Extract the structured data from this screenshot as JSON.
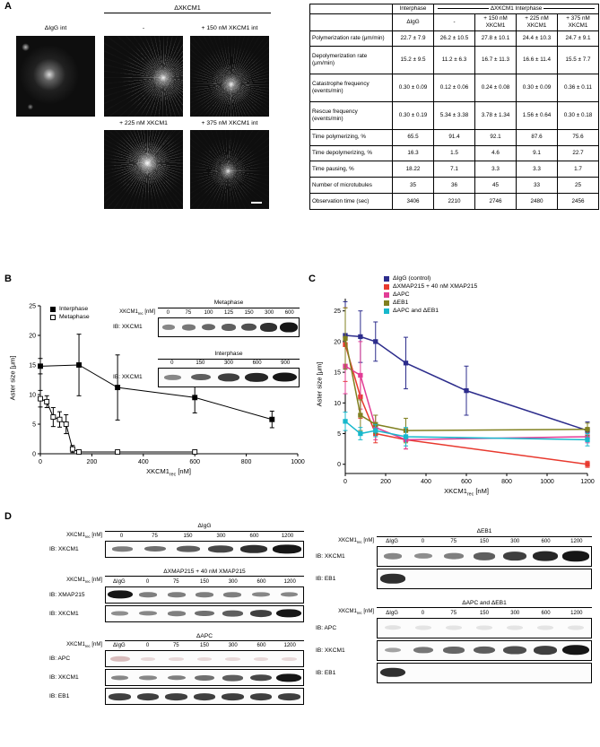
{
  "labels": {
    "xkcm1rec": {
      "base": "XKCM1",
      "sub": "rec",
      "post": " [nM]"
    }
  },
  "panelA": {
    "label": "A",
    "micrographs": {
      "igg_label": "ΔIgG int",
      "group_label": "ΔXKCM1",
      "images": [
        {
          "label": "-"
        },
        {
          "label": "+ 150 nM XKCM1 int"
        },
        {
          "label": "+ 225 nM XKCM1"
        },
        {
          "label": "+ 375 nM XKCM1 int"
        }
      ]
    },
    "table": {
      "col_group1": "Interphase",
      "col_group2": "ΔXKCM1 Interphase",
      "col_headers": [
        "ΔIgG",
        "-",
        "+ 150 nM XKCM1",
        "+ 225 nM XKCM1",
        "+ 375 nM XKCM1"
      ],
      "rows": [
        {
          "label": "Polymerization rate (μm/min)",
          "values": [
            "22.7 ± 7.9",
            "26.2 ± 10.5",
            "27.8 ± 10.1",
            "24.4 ± 10.3",
            "24.7 ± 9.1"
          ]
        },
        {
          "label": "Depolymerization rate (μm/min)",
          "values": [
            "15.2 ± 9.5",
            "11.2 ± 6.3",
            "16.7 ± 11.3",
            "16.6 ± 11.4",
            "15.5 ± 7.7"
          ]
        },
        {
          "label": "Catastrophe frequency (events/min)",
          "values": [
            "0.30 ± 0.09",
            "0.12 ± 0.06",
            "0.24 ± 0.08",
            "0.30 ± 0.09",
            "0.36 ± 0.11"
          ]
        },
        {
          "label": "Rescue frequency (events/min)",
          "values": [
            "0.30 ± 0.19",
            "5.34 ± 3.38",
            "3.78 ± 1.34",
            "1.56 ± 0.64",
            "0.30 ± 0.18"
          ]
        },
        {
          "label": "Time polymerizing, %",
          "values": [
            "65.5",
            "91.4",
            "92.1",
            "87.6",
            "75.6"
          ]
        },
        {
          "label": "Time depolymerizing, %",
          "values": [
            "16.3",
            "1.5",
            "4.6",
            "9.1",
            "22.7"
          ]
        },
        {
          "label": "Time pausing, %",
          "values": [
            "18.22",
            "7.1",
            "3.3",
            "3.3",
            "1.7"
          ]
        },
        {
          "label": "Number of microtubules",
          "values": [
            "35",
            "36",
            "45",
            "33",
            "25"
          ]
        },
        {
          "label": "Observation time (sec)",
          "values": [
            "3406",
            "2210",
            "2746",
            "2480",
            "2456"
          ]
        }
      ]
    }
  },
  "panelB": {
    "label": "B",
    "insets": [
      {
        "title": "Metaphase",
        "has_lane_label": true,
        "extra_lane": null,
        "lanes": [
          "0",
          "75",
          "100",
          "125",
          "150",
          "300",
          "600"
        ],
        "blots": [
          {
            "ib": "IB: XKCM1",
            "bands": [
              0.3,
              0.4,
              0.5,
              0.55,
              0.65,
              0.85,
              1
            ]
          }
        ]
      },
      {
        "title": "Interphase",
        "has_lane_label": false,
        "extra_lane": null,
        "lanes": [
          "0",
          "150",
          "300",
          "600",
          "900"
        ],
        "blots": [
          {
            "ib": "IB: XKCM1",
            "bands": [
              0.3,
              0.55,
              0.75,
              0.9,
              1
            ]
          }
        ]
      }
    ]
  },
  "panelC": {
    "label": "C"
  },
  "panelD": {
    "label": "D",
    "left_groups": [
      {
        "title": "ΔIgG",
        "has_lane_label": true,
        "extra_lane": null,
        "lanes": [
          "0",
          "75",
          "150",
          "300",
          "600",
          "1200"
        ],
        "blots": [
          {
            "ib": "IB: XKCM1",
            "bands": [
              0.35,
              0.45,
              0.55,
              0.7,
              0.85,
              1
            ]
          }
        ]
      },
      {
        "title": "ΔXMAP215 + 40 nM XMAP215",
        "has_lane_label": true,
        "extra_lane": "ΔIgG",
        "lanes": [
          "0",
          "75",
          "150",
          "300",
          "600",
          "1200"
        ],
        "blots": [
          {
            "ib": "IB: XMAP215",
            "bands": [
              1,
              0.35,
              0.35,
              0.35,
              0.35,
              0.3,
              0.3
            ]
          },
          {
            "ib": "IB: XKCM1",
            "bands": [
              0.25,
              0.3,
              0.35,
              0.45,
              0.55,
              0.75,
              1
            ]
          }
        ]
      },
      {
        "title": "ΔAPC",
        "has_lane_label": true,
        "extra_lane": "ΔIgG",
        "lanes": [
          "0",
          "75",
          "150",
          "300",
          "600",
          "1200"
        ],
        "blots": [
          {
            "ib": "IB: APC",
            "bands": [
              0.5,
              0.08,
              0.08,
              0.08,
              0.08,
              0.08,
              0.08
            ],
            "band_color": "#c49a9a"
          },
          {
            "ib": "IB: XKCM1",
            "bands": [
              0.3,
              0.3,
              0.35,
              0.45,
              0.55,
              0.7,
              1
            ]
          },
          {
            "ib": "IB: EB1",
            "bands": [
              0.75,
              0.75,
              0.75,
              0.75,
              0.75,
              0.75,
              0.75
            ]
          }
        ]
      }
    ],
    "right_groups": [
      {
        "title": "ΔEB1",
        "has_lane_label": true,
        "extra_lane": "ΔIgG",
        "lanes": [
          "0",
          "75",
          "150",
          "300",
          "600",
          "1200"
        ],
        "blots": [
          {
            "ib": "IB: XKCM1",
            "bands": [
              0.3,
              0.25,
              0.35,
              0.55,
              0.75,
              0.9,
              1
            ]
          },
          {
            "ib": "IB: EB1",
            "bands": [
              0.85,
              0,
              0,
              0,
              0,
              0,
              0
            ]
          }
        ]
      },
      {
        "title": "ΔAPC and ΔEB1",
        "has_lane_label": true,
        "extra_lane": "ΔIgG",
        "lanes": [
          "0",
          "75",
          "150",
          "300",
          "600",
          "1200"
        ],
        "blots": [
          {
            "ib": "IB: APC",
            "bands": [
              0.15,
              0.1,
              0.1,
              0.1,
              0.1,
              0.1,
              0.1
            ],
            "band_color": "#bbbbbb"
          },
          {
            "ib": "IB: XKCM1",
            "bands": [
              0.12,
              0.4,
              0.5,
              0.55,
              0.65,
              0.75,
              1
            ]
          },
          {
            "ib": "IB: EB1",
            "bands": [
              0.85,
              0,
              0,
              0,
              0,
              0,
              0
            ]
          }
        ]
      }
    ]
  },
  "chart_data": [
    {
      "panel": "B",
      "type": "line",
      "title": "",
      "xlabel": "XKCM1rec [nM]",
      "ylabel": "Aster size [μm]",
      "xlim": [
        0,
        1000
      ],
      "ylim": [
        0,
        25
      ],
      "xticks": [
        0,
        200,
        400,
        600,
        800,
        1000
      ],
      "yticks": [
        0,
        5,
        10,
        15,
        20,
        25
      ],
      "grid": false,
      "legend_position": "top-left-inside",
      "series": [
        {
          "name": "Interphase",
          "marker": "filled-square",
          "color": "#000000",
          "x": [
            0,
            150,
            300,
            600,
            900
          ],
          "y": [
            14.8,
            15.0,
            11.2,
            9.5,
            5.8
          ],
          "yerr": [
            1.3,
            5.2,
            5.5,
            2.6,
            1.4
          ]
        },
        {
          "name": "Metaphase",
          "marker": "open-square",
          "color": "#000000",
          "x": [
            0,
            25,
            50,
            75,
            100,
            125,
            150,
            300,
            600
          ],
          "y": [
            9.3,
            8.8,
            6.2,
            5.8,
            5.0,
            0.8,
            0.3,
            0.3,
            0.3
          ],
          "yerr": [
            1.4,
            1.0,
            1.6,
            1.3,
            1.6,
            0.6,
            0.2,
            0.2,
            0.2
          ]
        }
      ]
    },
    {
      "panel": "C",
      "type": "line",
      "title": "",
      "xlabel": "XKCM1rec [nM]",
      "ylabel": "Aster size [μm]",
      "xlim": [
        0,
        1200
      ],
      "ylim": [
        -1.5,
        27
      ],
      "xticks": [
        0,
        200,
        400,
        600,
        800,
        1000,
        1200
      ],
      "yticks": [
        0,
        5,
        10,
        15,
        20,
        25
      ],
      "grid": false,
      "legend_position": "top-right",
      "series": [
        {
          "name": "ΔIgG (control)",
          "marker": "filled-square",
          "color": "#2d2d8c",
          "x": [
            0,
            75,
            150,
            300,
            600,
            1200
          ],
          "y": [
            21,
            20.8,
            20,
            16.5,
            12,
            5.5
          ],
          "yerr": [
            5.5,
            4.2,
            3.2,
            4.2,
            4,
            1.4
          ]
        },
        {
          "name": "ΔXMAP215 + 40 nM XMAP215",
          "marker": "filled-square",
          "color": "#e8392e",
          "x": [
            0,
            75,
            150,
            300,
            1200
          ],
          "y": [
            19.5,
            11,
            5,
            4,
            0
          ],
          "yerr": [
            6,
            3.5,
            1.5,
            1.5,
            0.5
          ]
        },
        {
          "name": "ΔAPC",
          "marker": "filled-square",
          "color": "#e23c96",
          "x": [
            0,
            75,
            150,
            300,
            1200
          ],
          "y": [
            16,
            14.5,
            6,
            4,
            4.5
          ],
          "yerr": [
            4.5,
            5.5,
            2,
            1.5,
            1
          ]
        },
        {
          "name": "ΔEB1",
          "marker": "filled-square",
          "color": "#808020",
          "x": [
            0,
            75,
            150,
            300,
            1200
          ],
          "y": [
            20.5,
            8,
            6.5,
            5.5,
            5.7
          ],
          "yerr": [
            5,
            2.5,
            1.5,
            2,
            1
          ]
        },
        {
          "name": "ΔAPC and ΔEB1",
          "marker": "filled-square",
          "color": "#17b8cc",
          "x": [
            0,
            75,
            150,
            300,
            1200
          ],
          "y": [
            7,
            5,
            5.5,
            4.5,
            4
          ],
          "yerr": [
            1.5,
            1,
            1,
            1.5,
            1
          ]
        }
      ]
    }
  ]
}
